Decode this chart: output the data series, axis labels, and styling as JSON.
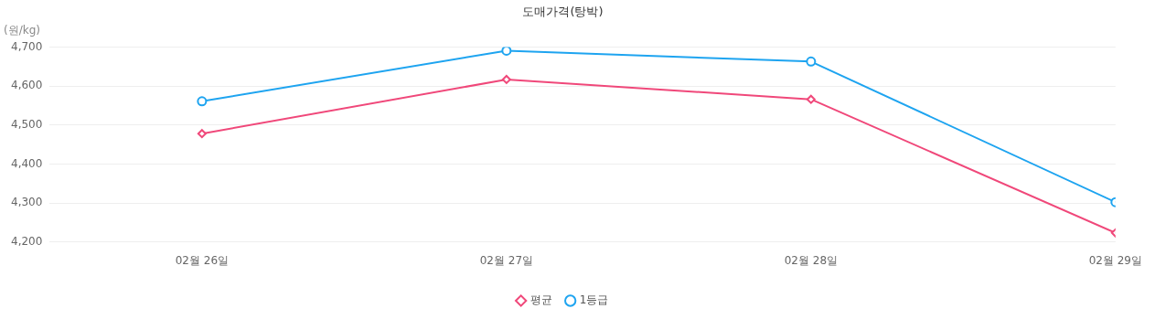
{
  "chart_data": {
    "type": "line",
    "title": "도매가격(탕박)",
    "ylabel": "(원/kg)",
    "categories": [
      "02월 26일",
      "02월 27일",
      "02월 28일",
      "02월 29일"
    ],
    "series": [
      {
        "name": "평균",
        "color": "#f0487a",
        "marker": "diamond",
        "values": [
          4478,
          4617,
          4566,
          4223
        ]
      },
      {
        "name": "1등급",
        "color": "#1ea4f0",
        "marker": "circle",
        "values": [
          4561,
          4691,
          4663,
          4302
        ]
      }
    ],
    "ylim": [
      4200,
      4700
    ],
    "yticks": [
      {
        "value": 4200,
        "label": "4,200"
      },
      {
        "value": 4300,
        "label": "4,300"
      },
      {
        "value": 4400,
        "label": "4,400"
      },
      {
        "value": 4500,
        "label": "4,500"
      },
      {
        "value": 4600,
        "label": "4,600"
      },
      {
        "value": 4700,
        "label": "4,700"
      }
    ],
    "grid": "y",
    "legend": "bottom",
    "line_style": "solid"
  }
}
